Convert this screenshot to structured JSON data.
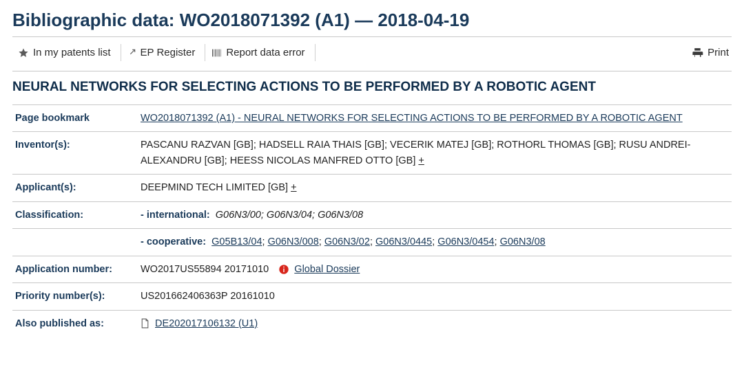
{
  "header": {
    "prefix": "Bibliographic data:",
    "doc_number": "WO2018071392 (A1)",
    "sep": "―",
    "date": "2018-04-19"
  },
  "toolbar": {
    "in_list": "In my patents list",
    "ep_register": "EP Register",
    "report_error": "Report data error",
    "print": "Print"
  },
  "title": "NEURAL NETWORKS FOR SELECTING ACTIONS TO BE PERFORMED BY A ROBOTIC AGENT",
  "rows": {
    "bookmark": {
      "label": "Page bookmark",
      "link_text": "WO2018071392 (A1)  -  NEURAL NETWORKS FOR SELECTING ACTIONS TO BE PERFORMED BY A ROBOTIC AGENT"
    },
    "inventors": {
      "label": "Inventor(s):",
      "value": "PASCANU RAZVAN  [GB]; HADSELL RAIA THAIS  [GB]; VECERIK MATEJ  [GB]; ROTHORL THOMAS  [GB]; RUSU ANDREI-ALEXANDRU  [GB]; HEESS NICOLAS MANFRED OTTO  [GB] ",
      "plus": "+"
    },
    "applicants": {
      "label": "Applicant(s):",
      "value": "DEEPMIND TECH LIMITED  [GB] ",
      "plus": "+"
    },
    "classification": {
      "label": "Classification:",
      "intl_label": "- international:",
      "intl_value": "G06N3/00; G06N3/04; G06N3/08",
      "coop_label": "- cooperative:",
      "coop_links": [
        "G05B13/04",
        "G06N3/008",
        "G06N3/02",
        "G06N3/0445",
        "G06N3/0454",
        "G06N3/08"
      ]
    },
    "app_number": {
      "label": "Application number:",
      "value": "WO2017US55894 20171010",
      "dossier": "Global Dossier"
    },
    "priority": {
      "label": "Priority number(s):",
      "value": "US201662406363P 20161010"
    },
    "also_published": {
      "label": "Also published as:",
      "link": "DE202017106132 (U1) "
    }
  },
  "colors": {
    "heading": "#1a3a5a",
    "border": "#c8c8c8",
    "text": "#222222",
    "info_red": "#d8261c"
  }
}
